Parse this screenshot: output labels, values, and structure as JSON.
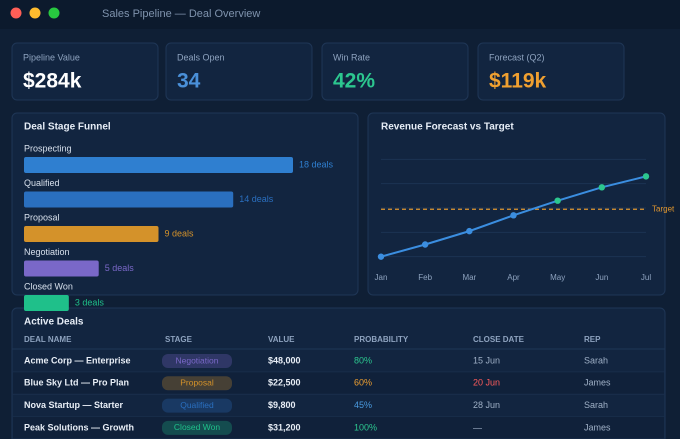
{
  "window": {
    "title": "Sales Pipeline — Deal Overview"
  },
  "kpis": [
    {
      "label": "Pipeline Value",
      "value": "$284k",
      "color": "#ffffff"
    },
    {
      "label": "Deals Open",
      "value": "34",
      "color": "#4a90d9"
    },
    {
      "label": "Win Rate",
      "value": "42%",
      "color": "#2cc78f"
    },
    {
      "label": "Forecast (Q2)",
      "value": "$119k",
      "color": "#f0a030"
    }
  ],
  "funnel": {
    "type": "bar",
    "title": "Deal Stage Funnel",
    "categories": [
      "Prospecting",
      "Qualified",
      "Proposal",
      "Negotiation",
      "Closed Won"
    ],
    "values": [
      18,
      14,
      9,
      5,
      3
    ],
    "value_labels": [
      "18 deals",
      "14 deals",
      "9 deals",
      "5 deals",
      "3 deals"
    ],
    "colors": [
      "#2f7fd0",
      "#2a6fbf",
      "#d4922a",
      "#7a68c8",
      "#1fc08a"
    ],
    "xlim": [
      0,
      18
    ]
  },
  "forecast": {
    "type": "line",
    "title": "Revenue Forecast vs Target",
    "categories": [
      "Jan",
      "Feb",
      "Mar",
      "Apr",
      "May",
      "Jun",
      "Jul"
    ],
    "values": [
      1.0,
      1.5,
      2.05,
      2.7,
      3.3,
      3.85,
      4.3
    ],
    "color": "#3b8ee0",
    "above_color": "#2cc78f",
    "target": 2.95,
    "target_label": "Target",
    "target_color": "#e0962e",
    "ylim": [
      0,
      6
    ],
    "yticks": [
      1,
      2,
      3,
      4,
      5
    ],
    "grid": true
  },
  "deals": {
    "title": "Active Deals",
    "columns": [
      "DEAL NAME",
      "STAGE",
      "VALUE",
      "PROBABILITY",
      "CLOSE DATE",
      "REP"
    ],
    "rows": [
      [
        "Acme Corp — Enterprise",
        "Negotiation",
        "$48,000",
        "80%",
        "15 Jun",
        "Sarah"
      ],
      [
        "Blue Sky Ltd — Pro Plan",
        "Proposal",
        "$22,500",
        "60%",
        "20 Jun",
        "James"
      ],
      [
        "Nova Startup — Starter",
        "Qualified",
        "$9,800",
        "45%",
        "28 Jun",
        "Sarah"
      ],
      [
        "Peak Solutions — Growth",
        "Closed Won",
        "$31,200",
        "100%",
        "—",
        "James"
      ]
    ]
  }
}
